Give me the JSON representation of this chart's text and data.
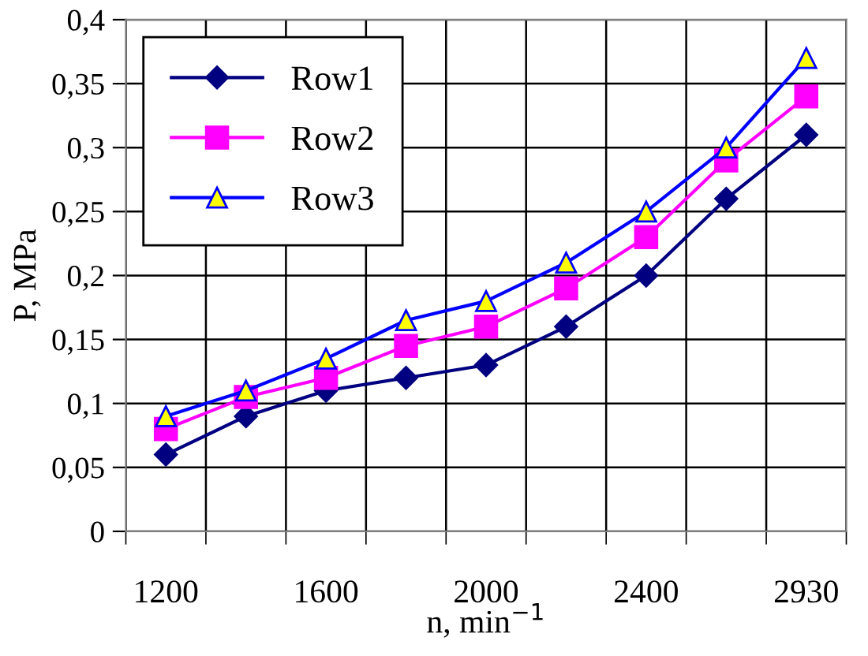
{
  "chart_data": {
    "type": "line",
    "xlabel": "n, min$^{−1}$",
    "ylabel": "P, MPa",
    "categories": [
      "1200",
      null,
      "1600",
      null,
      "2000",
      null,
      "2400",
      null,
      "2930"
    ],
    "series": [
      {
        "name": "Row1",
        "color": "#000080",
        "marker": "diamond",
        "values": [
          0.06,
          0.09,
          0.11,
          0.12,
          0.13,
          0.16,
          0.2,
          0.26,
          0.31
        ]
      },
      {
        "name": "Row2",
        "color": "#ff00ff",
        "marker": "square",
        "values": [
          0.08,
          0.105,
          0.12,
          0.145,
          0.16,
          0.19,
          0.23,
          0.29,
          0.34
        ]
      },
      {
        "name": "Row3",
        "color": "#0000ff",
        "marker": "triangle",
        "values": [
          0.09,
          0.11,
          0.135,
          0.165,
          0.18,
          0.21,
          0.25,
          0.3,
          0.37
        ]
      }
    ],
    "ylim": [
      0,
      0.4
    ],
    "yticks": [
      {
        "value": 0,
        "label": "0"
      },
      {
        "value": 0.05,
        "label": "0,05"
      },
      {
        "value": 0.1,
        "label": "0,1"
      },
      {
        "value": 0.15,
        "label": "0,15"
      },
      {
        "value": 0.2,
        "label": "0,2"
      },
      {
        "value": 0.25,
        "label": "0,25"
      },
      {
        "value": 0.3,
        "label": "0,3"
      },
      {
        "value": 0.35,
        "label": "0,35"
      },
      {
        "value": 0.4,
        "label": "0,4"
      }
    ],
    "grid": true,
    "legend": "top left",
    "line_style": "solid"
  }
}
